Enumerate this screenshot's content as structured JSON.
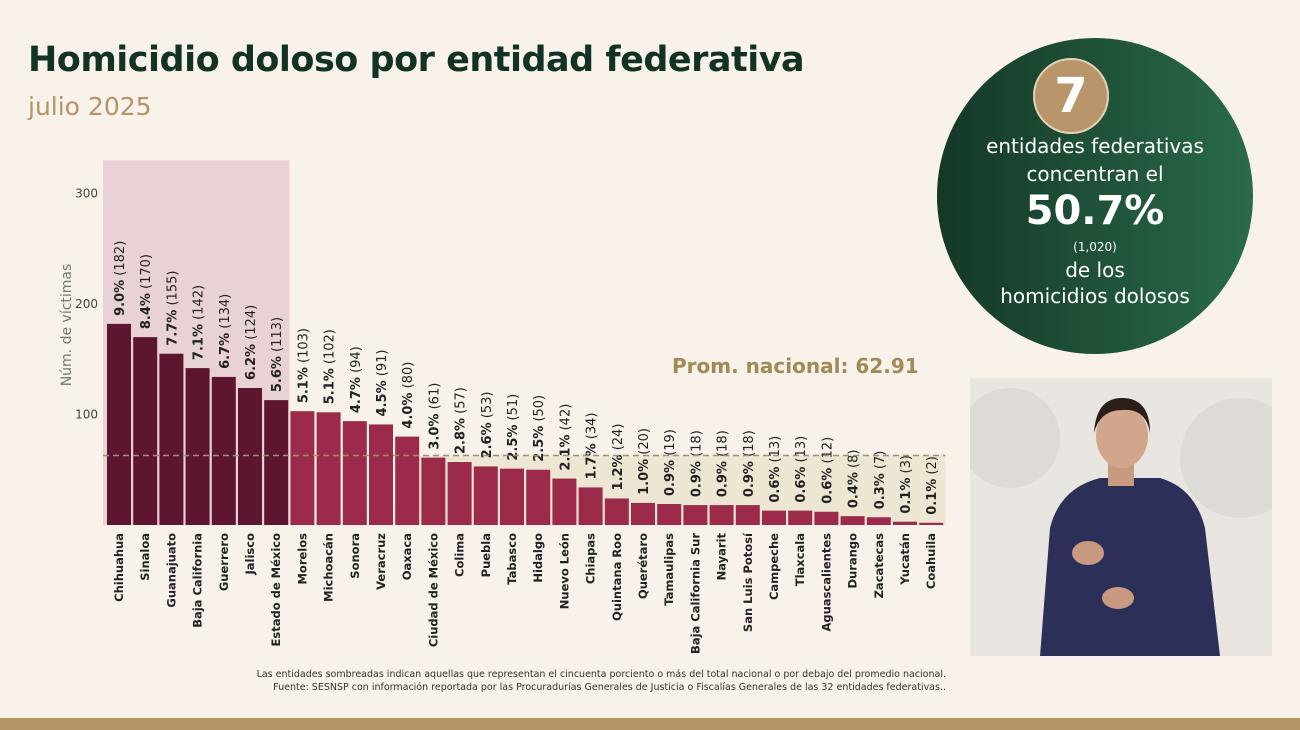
{
  "header": {
    "title": "Homicidio doloso por entidad federativa",
    "subtitle": "julio 2025"
  },
  "chart_data": {
    "type": "bar",
    "ylabel": "Núm. de víctimas",
    "yticks": [
      100,
      200,
      300
    ],
    "ylim": [
      0,
      330
    ],
    "categories": [
      "Chihuahua",
      "Sinaloa",
      "Guanajuato",
      "Baja California",
      "Guerrero",
      "Jalisco",
      "Estado de México",
      "Morelos",
      "Michoacán",
      "Sonora",
      "Veracruz",
      "Oaxaca",
      "Ciudad de México",
      "Colima",
      "Puebla",
      "Tabasco",
      "Hidalgo",
      "Nuevo León",
      "Chiapas",
      "Quintana Roo",
      "Querétaro",
      "Tamaulipas",
      "Baja California Sur",
      "Nayarit",
      "San Luis Potosí",
      "Campeche",
      "Tlaxcala",
      "Aguascalientes",
      "Durango",
      "Zacatecas",
      "Yucatán",
      "Coahuila"
    ],
    "values": [
      182,
      170,
      155,
      142,
      134,
      124,
      113,
      103,
      102,
      94,
      91,
      80,
      61,
      57,
      53,
      51,
      50,
      42,
      34,
      24,
      20,
      19,
      18,
      18,
      18,
      13,
      13,
      12,
      8,
      7,
      3,
      2
    ],
    "percent_labels": [
      "9.0%",
      "8.4%",
      "7.7%",
      "7.1%",
      "6.7%",
      "6.2%",
      "5.6%",
      "5.1%",
      "5.1%",
      "4.7%",
      "4.5%",
      "4.0%",
      "3.0%",
      "2.8%",
      "2.6%",
      "2.5%",
      "2.5%",
      "2.1%",
      "1.7%",
      "1.2%",
      "1.0%",
      "0.9%",
      "0.9%",
      "0.9%",
      "0.9%",
      "0.6%",
      "0.6%",
      "0.6%",
      "0.4%",
      "0.3%",
      "0.1%",
      "0.1%"
    ],
    "average": 62.91,
    "average_label": "Prom. nacional: 62.91",
    "highlight_top_count": 7,
    "colors": {
      "top": "#5e1530",
      "rest": "#9b2a4b",
      "top_shade": "#e8d2d4",
      "below_avg_shade": "#ede6d2",
      "average_line": "#9b8f75"
    }
  },
  "summary": {
    "count": "7",
    "line1": "entidades federativas",
    "line2": "concentran el",
    "percent": "50.7%",
    "total": "(1,020)",
    "line3": "de los",
    "line4": "homicidios dolosos"
  },
  "notes": {
    "line1": "Las entidades sombreadas indican aquellas que representan el cincuenta porciento o más del total nacional o por debajo del promedio nacional.",
    "line2": "Fuente: SESNSP con información reportada por las Procuradurías Generales de Justicia o Fiscalías Generales de las 32 entidades federativas.."
  }
}
